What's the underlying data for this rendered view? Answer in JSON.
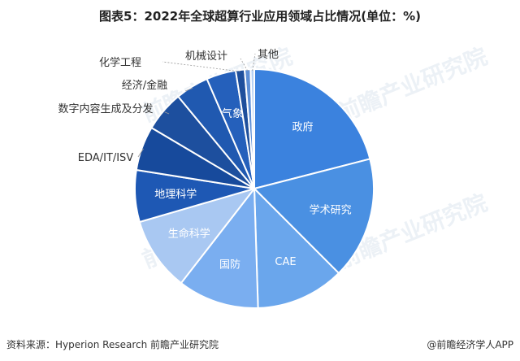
{
  "title": "图表5：2022年全球超算行业应用领域占比情况(单位：%)",
  "watermark": "前瞻产业研究院",
  "source": "资料来源：Hyperion Research 前瞻产业研究院",
  "credit": "@前瞻经济学人APP",
  "chart_data": {
    "type": "pie",
    "title": "图表5：2022年全球超算行业应用领域占比情况(单位：%)",
    "unit": "%",
    "start_from": "top, clockwise",
    "slices": [
      {
        "label": "政府",
        "value": 21.0,
        "color": "#3b82de",
        "label_inside": true
      },
      {
        "label": "学术研究",
        "value": 16.5,
        "color": "#4a90e2",
        "label_inside": true
      },
      {
        "label": "CAE",
        "value": 12.0,
        "color": "#6aa6ec",
        "label_inside": true
      },
      {
        "label": "国防",
        "value": 11.0,
        "color": "#7aaef0",
        "label_inside": true
      },
      {
        "label": "生命科学",
        "value": 10.0,
        "color": "#a9c8f2",
        "label_inside": true
      },
      {
        "label": "地理科学",
        "value": 7.0,
        "color": "#1e58b4",
        "label_inside": true
      },
      {
        "label": "EDA/IT/ISV",
        "value": 6.0,
        "color": "#174a9c",
        "label_inside": false
      },
      {
        "label": "数字内容生成及分发",
        "value": 5.5,
        "color": "#1d4f9e",
        "label_inside": false
      },
      {
        "label": "经济/金融",
        "value": 4.5,
        "color": "#2059b0",
        "label_inside": false
      },
      {
        "label": "气象",
        "value": 4.0,
        "color": "#2560bb",
        "label_inside": true
      },
      {
        "label": "化学工程",
        "value": 1.2,
        "color": "#1e4f9c",
        "label_inside": false
      },
      {
        "label": "机械设计",
        "value": 0.8,
        "color": "#5d8fd6",
        "label_inside": false
      },
      {
        "label": "其他",
        "value": 0.5,
        "color": "#b7d2f4",
        "label_inside": false
      }
    ]
  }
}
